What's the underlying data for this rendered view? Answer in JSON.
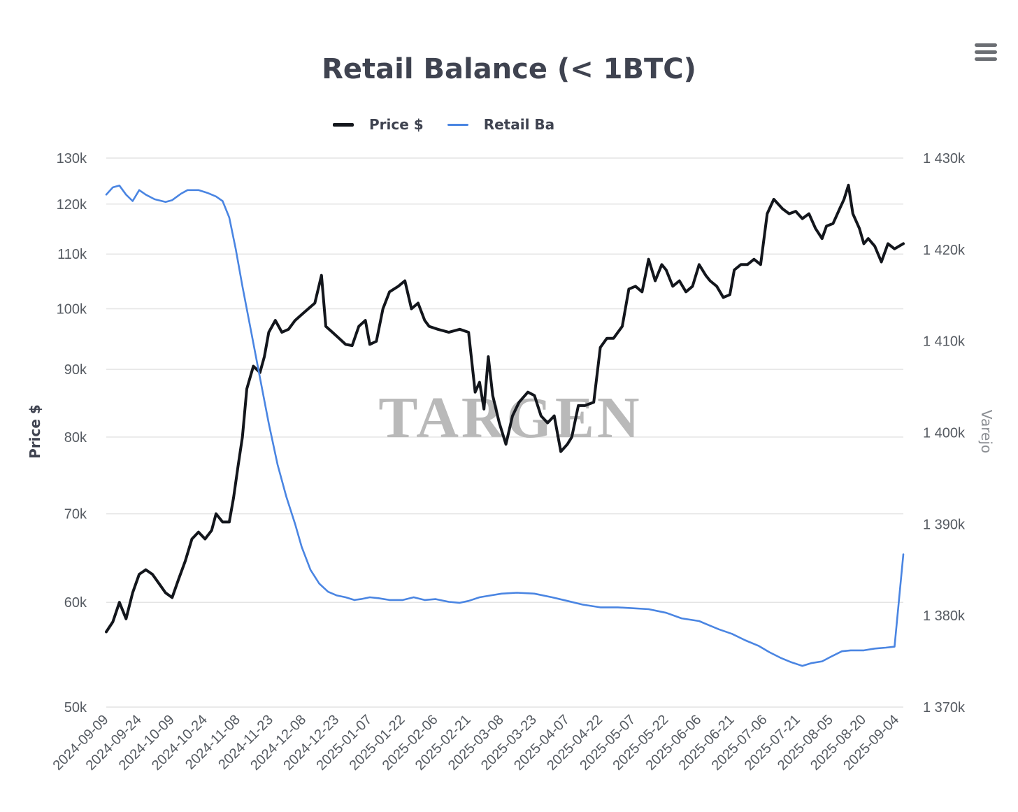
{
  "title": "Retail Balance (< 1BTC)",
  "watermark": "TARGEN",
  "menu_icon": "hamburger-menu-icon",
  "colors": {
    "price": "#13161c",
    "retail": "#4a85e2",
    "grid": "#e4e4e4",
    "text": "#3f4350"
  },
  "chart_data": {
    "type": "line",
    "title": "Retail Balance (< 1BTC)",
    "legend": {
      "placement": "top-center",
      "entries": [
        "Price $",
        "Retail Ba"
      ]
    },
    "x_ticks": [
      "2024-09-09",
      "2024-09-24",
      "2024-10-09",
      "2024-10-24",
      "2024-11-08",
      "2024-11-23",
      "2024-12-08",
      "2024-12-23",
      "2025-01-07",
      "2025-01-22",
      "2025-02-06",
      "2025-02-21",
      "2025-03-08",
      "2025-03-23",
      "2025-04-07",
      "2025-04-22",
      "2025-05-07",
      "2025-05-22",
      "2025-06-06",
      "2025-06-21",
      "2025-07-06",
      "2025-07-21",
      "2025-08-05",
      "2025-08-20",
      "2025-09-04"
    ],
    "xlim": [
      "2024-09-09",
      "2025-09-07"
    ],
    "y_left": {
      "label": "Price $",
      "scale": "log",
      "ylim": [
        50000,
        130000
      ],
      "ticks": [
        50000,
        60000,
        70000,
        80000,
        90000,
        100000,
        110000,
        120000,
        130000
      ],
      "tick_labels": [
        "50k",
        "60k",
        "70k",
        "80k",
        "90k",
        "100k",
        "110k",
        "120k",
        "130k"
      ]
    },
    "y_right": {
      "label": "Varejo",
      "scale": "linear",
      "ylim": [
        1370000,
        1430000
      ],
      "ticks": [
        1370000,
        1380000,
        1390000,
        1400000,
        1410000,
        1420000,
        1430000
      ],
      "tick_labels": [
        "1 370k",
        "1 380k",
        "1 390k",
        "1 400k",
        "1 410k",
        "1 420k",
        "1 430k"
      ]
    },
    "grid": true,
    "series": [
      {
        "name": "Price $",
        "axis": "left",
        "x": [
          "2024-09-09",
          "2024-09-12",
          "2024-09-15",
          "2024-09-18",
          "2024-09-21",
          "2024-09-24",
          "2024-09-27",
          "2024-09-30",
          "2024-10-03",
          "2024-10-06",
          "2024-10-09",
          "2024-10-12",
          "2024-10-15",
          "2024-10-18",
          "2024-10-21",
          "2024-10-24",
          "2024-10-27",
          "2024-10-29",
          "2024-11-01",
          "2024-11-04",
          "2024-11-06",
          "2024-11-08",
          "2024-11-10",
          "2024-11-12",
          "2024-11-15",
          "2024-11-18",
          "2024-11-20",
          "2024-11-22",
          "2024-11-25",
          "2024-11-28",
          "2024-12-01",
          "2024-12-04",
          "2024-12-07",
          "2024-12-10",
          "2024-12-13",
          "2024-12-16",
          "2024-12-18",
          "2024-12-21",
          "2024-12-24",
          "2024-12-27",
          "2024-12-30",
          "2025-01-02",
          "2025-01-05",
          "2025-01-07",
          "2025-01-10",
          "2025-01-13",
          "2025-01-16",
          "2025-01-20",
          "2025-01-23",
          "2025-01-26",
          "2025-01-29",
          "2025-02-01",
          "2025-02-03",
          "2025-02-07",
          "2025-02-12",
          "2025-02-17",
          "2025-02-21",
          "2025-02-24",
          "2025-02-26",
          "2025-02-28",
          "2025-03-02",
          "2025-03-04",
          "2025-03-07",
          "2025-03-10",
          "2025-03-13",
          "2025-03-16",
          "2025-03-20",
          "2025-03-23",
          "2025-03-26",
          "2025-03-29",
          "2025-04-01",
          "2025-04-04",
          "2025-04-07",
          "2025-04-09",
          "2025-04-12",
          "2025-04-15",
          "2025-04-19",
          "2025-04-22",
          "2025-04-25",
          "2025-04-28",
          "2025-05-02",
          "2025-05-05",
          "2025-05-08",
          "2025-05-11",
          "2025-05-14",
          "2025-05-17",
          "2025-05-20",
          "2025-05-22",
          "2025-05-25",
          "2025-05-28",
          "2025-05-31",
          "2025-06-03",
          "2025-06-06",
          "2025-06-09",
          "2025-06-11",
          "2025-06-14",
          "2025-06-17",
          "2025-06-20",
          "2025-06-22",
          "2025-06-25",
          "2025-06-28",
          "2025-07-01",
          "2025-07-04",
          "2025-07-07",
          "2025-07-10",
          "2025-07-14",
          "2025-07-17",
          "2025-07-20",
          "2025-07-23",
          "2025-07-26",
          "2025-07-29",
          "2025-08-01",
          "2025-08-03",
          "2025-08-06",
          "2025-08-09",
          "2025-08-11",
          "2025-08-13",
          "2025-08-15",
          "2025-08-18",
          "2025-08-20",
          "2025-08-22",
          "2025-08-25",
          "2025-08-28",
          "2025-08-31",
          "2025-09-03",
          "2025-09-07"
        ],
        "y": [
          57000,
          58000,
          60000,
          58300,
          61000,
          63000,
          63500,
          63000,
          62000,
          61000,
          60500,
          62500,
          64500,
          67000,
          67800,
          67000,
          68000,
          70000,
          69000,
          69000,
          72000,
          76000,
          80000,
          87000,
          90500,
          89500,
          92000,
          96000,
          98000,
          96000,
          96500,
          98000,
          99000,
          100000,
          101000,
          106000,
          97000,
          96000,
          95000,
          94000,
          93800,
          97000,
          98000,
          94000,
          94500,
          100000,
          103000,
          104000,
          105000,
          100000,
          101000,
          98000,
          97000,
          96500,
          96000,
          96500,
          96000,
          86500,
          88000,
          84000,
          92000,
          86000,
          82000,
          79000,
          83000,
          85000,
          86500,
          86000,
          83000,
          82000,
          83000,
          78000,
          79000,
          80000,
          84500,
          84500,
          85000,
          93500,
          95000,
          95000,
          97000,
          103500,
          104000,
          103000,
          109000,
          105000,
          108000,
          107000,
          104000,
          105000,
          103000,
          104000,
          108000,
          106000,
          105000,
          104000,
          102000,
          102500,
          107000,
          108000,
          108000,
          109000,
          108000,
          118000,
          121000,
          119000,
          118000,
          118500,
          117000,
          118000,
          115000,
          113000,
          115500,
          116000,
          119000,
          121000,
          124000,
          118000,
          115000,
          112000,
          113000,
          111500,
          108500,
          112000,
          111000,
          112000
        ]
      },
      {
        "name": "Retail Ba",
        "axis": "right",
        "x": [
          "2024-09-09",
          "2024-09-12",
          "2024-09-15",
          "2024-09-18",
          "2024-09-21",
          "2024-09-24",
          "2024-09-27",
          "2024-10-01",
          "2024-10-06",
          "2024-10-09",
          "2024-10-13",
          "2024-10-16",
          "2024-10-21",
          "2024-10-25",
          "2024-10-29",
          "2024-11-01",
          "2024-11-04",
          "2024-11-07",
          "2024-11-10",
          "2024-11-14",
          "2024-11-18",
          "2024-11-22",
          "2024-11-26",
          "2024-11-30",
          "2024-12-04",
          "2024-12-07",
          "2024-12-11",
          "2024-12-15",
          "2024-12-19",
          "2024-12-23",
          "2024-12-27",
          "2024-12-31",
          "2025-01-03",
          "2025-01-07",
          "2025-01-11",
          "2025-01-16",
          "2025-01-22",
          "2025-01-27",
          "2025-02-01",
          "2025-02-06",
          "2025-02-12",
          "2025-02-17",
          "2025-02-21",
          "2025-02-26",
          "2025-03-03",
          "2025-03-08",
          "2025-03-15",
          "2025-03-23",
          "2025-03-31",
          "2025-04-07",
          "2025-04-14",
          "2025-04-22",
          "2025-04-30",
          "2025-05-07",
          "2025-05-14",
          "2025-05-22",
          "2025-05-29",
          "2025-06-06",
          "2025-06-10",
          "2025-06-15",
          "2025-06-21",
          "2025-06-27",
          "2025-07-03",
          "2025-07-08",
          "2025-07-13",
          "2025-07-18",
          "2025-07-23",
          "2025-07-27",
          "2025-08-01",
          "2025-08-05",
          "2025-08-10",
          "2025-08-14",
          "2025-08-20",
          "2025-08-25",
          "2025-08-30",
          "2025-09-03",
          "2025-09-07"
        ],
        "y": [
          1426000,
          1426800,
          1427000,
          1426000,
          1425300,
          1426500,
          1426000,
          1425500,
          1425200,
          1425400,
          1426100,
          1426500,
          1426500,
          1426200,
          1425800,
          1425300,
          1423500,
          1420000,
          1416000,
          1411000,
          1406000,
          1401000,
          1396500,
          1393000,
          1390000,
          1387500,
          1385000,
          1383500,
          1382600,
          1382200,
          1382000,
          1381700,
          1381800,
          1382000,
          1381900,
          1381700,
          1381700,
          1382000,
          1381700,
          1381800,
          1381500,
          1381400,
          1381600,
          1382000,
          1382200,
          1382400,
          1382500,
          1382400,
          1382000,
          1381600,
          1381200,
          1380900,
          1380900,
          1380800,
          1380700,
          1380300,
          1379700,
          1379400,
          1379000,
          1378500,
          1378000,
          1377300,
          1376700,
          1376000,
          1375400,
          1374900,
          1374500,
          1374800,
          1375000,
          1375500,
          1376100,
          1376200,
          1376200,
          1376400,
          1376500,
          1376600,
          1386700
        ]
      }
    ]
  }
}
